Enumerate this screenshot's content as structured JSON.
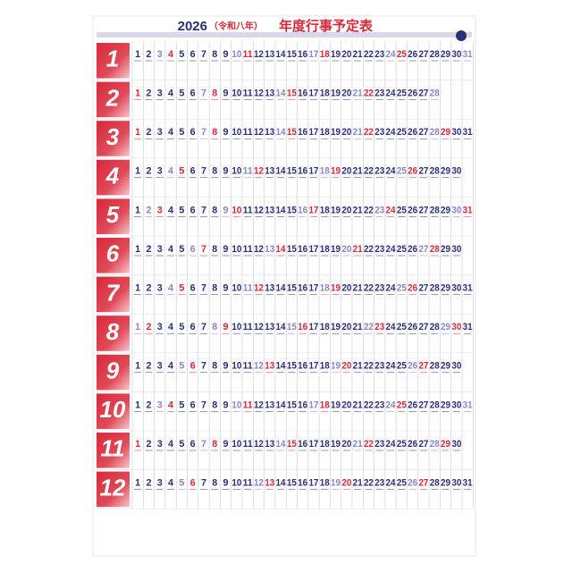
{
  "header": {
    "year": "2026",
    "era": "（令和八年）",
    "title": "年度行事予定表"
  },
  "months": [
    {
      "label": "1",
      "days": [
        1,
        2,
        3,
        4,
        5,
        6,
        7,
        8,
        9,
        10,
        11,
        12,
        13,
        14,
        15,
        16,
        17,
        18,
        19,
        20,
        21,
        22,
        23,
        24,
        25,
        26,
        27,
        28,
        29,
        30,
        31
      ]
    },
    {
      "label": "2",
      "days": [
        1,
        2,
        3,
        4,
        5,
        6,
        7,
        8,
        9,
        10,
        11,
        12,
        13,
        14,
        15,
        16,
        17,
        18,
        19,
        20,
        21,
        22,
        23,
        24,
        25,
        26,
        27,
        28
      ]
    },
    {
      "label": "3",
      "days": [
        1,
        2,
        3,
        4,
        5,
        6,
        7,
        8,
        9,
        10,
        11,
        12,
        13,
        14,
        15,
        16,
        17,
        18,
        19,
        20,
        21,
        22,
        23,
        24,
        25,
        26,
        27,
        28,
        29,
        30,
        31
      ]
    },
    {
      "label": "4",
      "days": [
        1,
        2,
        3,
        4,
        5,
        6,
        7,
        8,
        9,
        10,
        11,
        12,
        13,
        14,
        15,
        16,
        17,
        18,
        19,
        20,
        21,
        22,
        23,
        24,
        25,
        26,
        27,
        28,
        29,
        30
      ]
    },
    {
      "label": "5",
      "days": [
        1,
        2,
        3,
        4,
        5,
        6,
        7,
        8,
        9,
        10,
        11,
        12,
        13,
        14,
        15,
        16,
        17,
        18,
        19,
        20,
        21,
        22,
        23,
        24,
        25,
        26,
        27,
        28,
        29,
        30,
        31
      ]
    },
    {
      "label": "6",
      "days": [
        1,
        2,
        3,
        4,
        5,
        6,
        7,
        8,
        9,
        10,
        11,
        12,
        13,
        14,
        15,
        16,
        17,
        18,
        19,
        20,
        21,
        22,
        23,
        24,
        25,
        26,
        27,
        28,
        29,
        30
      ]
    },
    {
      "label": "7",
      "days": [
        1,
        2,
        3,
        4,
        5,
        6,
        7,
        8,
        9,
        10,
        11,
        12,
        13,
        14,
        15,
        16,
        17,
        18,
        19,
        20,
        21,
        22,
        23,
        24,
        25,
        26,
        27,
        28,
        29,
        30,
        31
      ]
    },
    {
      "label": "8",
      "days": [
        1,
        2,
        3,
        4,
        5,
        6,
        7,
        8,
        9,
        10,
        11,
        12,
        13,
        14,
        15,
        16,
        17,
        18,
        19,
        20,
        21,
        22,
        23,
        24,
        25,
        26,
        27,
        28,
        29,
        30,
        31
      ]
    },
    {
      "label": "9",
      "days": [
        1,
        2,
        3,
        4,
        5,
        6,
        7,
        8,
        9,
        10,
        11,
        12,
        13,
        14,
        15,
        16,
        17,
        18,
        19,
        20,
        21,
        22,
        23,
        24,
        25,
        26,
        27,
        28,
        29,
        30
      ]
    },
    {
      "label": "10",
      "days": [
        1,
        2,
        3,
        4,
        5,
        6,
        7,
        8,
        9,
        10,
        11,
        12,
        13,
        14,
        15,
        16,
        17,
        18,
        19,
        20,
        21,
        22,
        23,
        24,
        25,
        26,
        27,
        28,
        29,
        30,
        31
      ]
    },
    {
      "label": "11",
      "days": [
        1,
        2,
        3,
        4,
        5,
        6,
        7,
        8,
        9,
        10,
        11,
        12,
        13,
        14,
        15,
        16,
        17,
        18,
        19,
        20,
        21,
        22,
        23,
        24,
        25,
        26,
        27,
        28,
        29,
        30
      ]
    },
    {
      "label": "12",
      "days": [
        1,
        2,
        3,
        4,
        5,
        6,
        7,
        8,
        9,
        10,
        11,
        12,
        13,
        14,
        15,
        16,
        17,
        18,
        19,
        20,
        21,
        22,
        23,
        24,
        25,
        26,
        27,
        28,
        29,
        30,
        31
      ]
    }
  ]
}
